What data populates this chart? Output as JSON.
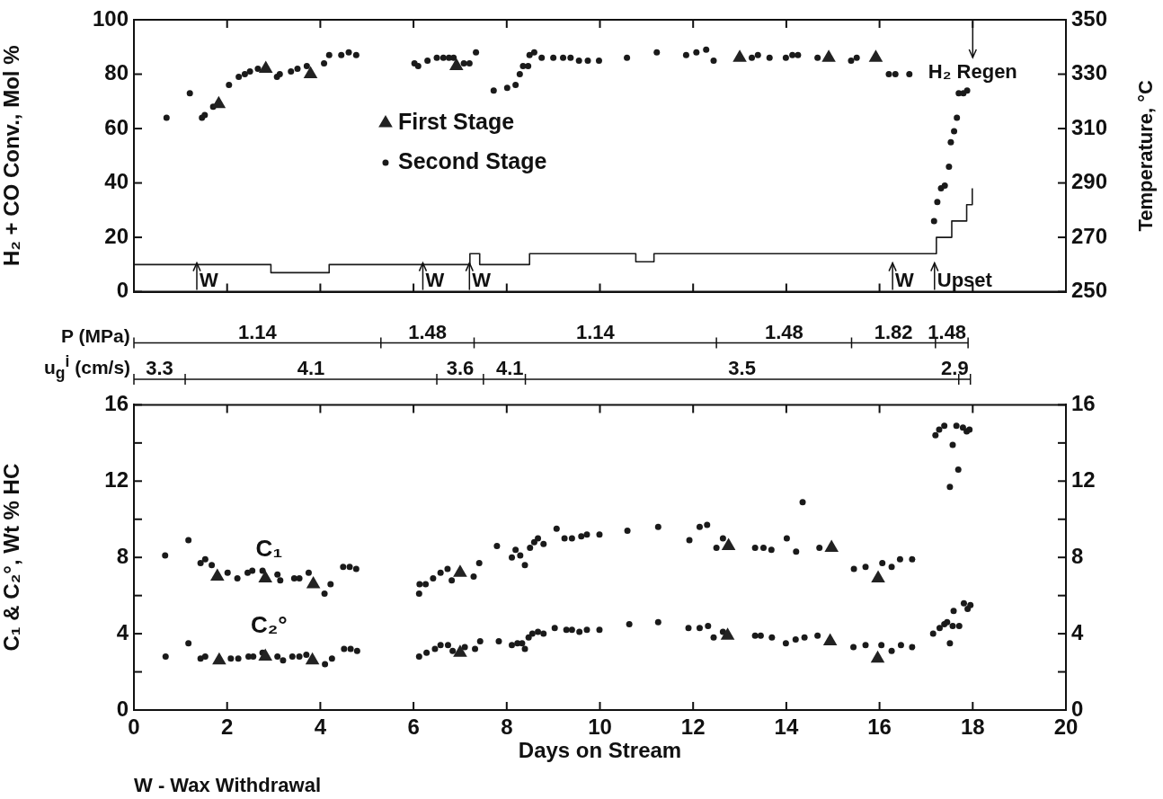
{
  "chart_data": [
    {
      "type": "scatter",
      "ylabel": "H₂ + CO Conv., Mol %",
      "y2label": "Temperature, °C",
      "xlim": [
        0,
        20
      ],
      "xticks": [
        0,
        2,
        4,
        6,
        8,
        10,
        12,
        14,
        16,
        18,
        20
      ],
      "ylim": [
        0,
        100
      ],
      "yticks": [
        0,
        20,
        40,
        60,
        80,
        100
      ],
      "y2lim": [
        250,
        350
      ],
      "y2ticks": [
        250,
        270,
        290,
        310,
        330,
        350
      ],
      "tick_labels": "y",
      "legend": "left",
      "series": [
        {
          "name": "First Stage",
          "color": "#222222",
          "marker": "triangle",
          "x": [
            1.82,
            2.83,
            3.79,
            6.92,
            13.0,
            14.91,
            15.92
          ],
          "values": [
            69,
            82,
            80,
            83,
            86,
            86,
            86
          ]
        },
        {
          "name": "Second Stage",
          "color": "#1a1a1a",
          "marker": "circle",
          "x": [
            0.7,
            1.2,
            1.46,
            1.52,
            1.7,
            2.04,
            2.25,
            2.38,
            2.49,
            2.66,
            3.07,
            3.13,
            3.37,
            3.51,
            3.71,
            4.08,
            4.19,
            4.45,
            4.61,
            4.77,
            6.02,
            6.1,
            6.3,
            6.5,
            6.64,
            6.76,
            6.86,
            7.08,
            7.2,
            7.34,
            7.72,
            8.01,
            8.19,
            8.28,
            8.35,
            8.46,
            8.49,
            8.59,
            8.75,
            9.0,
            9.21,
            9.37,
            9.55,
            9.74,
            9.98,
            10.58,
            11.22,
            11.85,
            12.07,
            12.28,
            12.44,
            13.26,
            13.39,
            13.64,
            13.99,
            14.13,
            14.25,
            14.67,
            15.39,
            15.51,
            16.2,
            16.34,
            16.64,
            17.17,
            17.24,
            17.32,
            17.4,
            17.49,
            17.53,
            17.6,
            17.66,
            17.7,
            17.8,
            17.88
          ],
          "values": [
            64,
            73,
            64,
            65,
            68,
            76,
            79,
            80,
            81,
            82,
            79,
            80,
            81,
            82,
            83,
            84,
            87,
            87,
            88,
            87,
            84,
            83,
            85,
            86,
            86,
            86,
            86,
            84,
            84,
            88,
            74,
            75,
            76,
            80,
            83,
            83,
            87,
            88,
            86,
            86,
            86,
            86,
            85,
            85,
            85,
            86,
            88,
            87,
            88,
            89,
            85,
            86,
            87,
            86,
            86,
            87,
            87,
            86,
            85,
            86,
            80,
            80,
            80,
            26,
            33,
            38,
            39,
            46,
            55,
            59,
            64,
            73,
            73,
            74
          ]
        },
        {
          "type": "step",
          "axis": "y2",
          "color": "#1a1a1a",
          "marker": "none",
          "x": [
            0,
            2.94,
            4.19,
            7.21,
            7.42,
            8.49,
            10.77,
            11.16,
            17.22,
            17.55,
            17.87,
            17.99
          ],
          "values": [
            260,
            257,
            260,
            264,
            260,
            264,
            261,
            264,
            270,
            276,
            282,
            288
          ]
        }
      ],
      "annotations": [
        "W",
        "W",
        "W",
        "W",
        "Upset",
        "H₂ Regen"
      ]
    },
    {
      "type": "other",
      "annotations": [
        "P (MPa)",
        "1.14",
        "1.48",
        "1.14",
        "1.48",
        "1.82",
        "1.48",
        "u$_{g}$$^{i}$ (cm/s)",
        "3.3",
        "4.1",
        "3.6",
        "4.1",
        "3.5",
        "2.9"
      ]
    },
    {
      "type": "scatter",
      "xlabel": "Days on Stream",
      "ylabel": "C₁ & C₂°, Wt % HC",
      "xlim": [
        0,
        20
      ],
      "xticks": [
        0,
        2,
        4,
        6,
        8,
        10,
        12,
        14,
        16,
        18,
        20
      ],
      "ylim": [
        0,
        16
      ],
      "yticks": [
        0,
        {
          "value": 2,
          "label": null
        },
        4,
        {
          "value": 6,
          "label": null
        },
        8,
        {
          "value": 10,
          "label": null
        },
        12,
        {
          "value": 14,
          "label": null
        },
        16
      ],
      "y2lim": [
        0,
        16
      ],
      "y2ticks": [
        0,
        {
          "value": 2,
          "label": null
        },
        4,
        {
          "value": 6,
          "label": null
        },
        8,
        {
          "value": 10,
          "label": null
        },
        12,
        {
          "value": 14,
          "label": null
        },
        16
      ],
      "series": [
        {
          "color": "#222222",
          "marker": "triangle",
          "x": [
            1.79,
            2.82,
            3.85,
            7.0,
            12.76,
            14.97,
            15.97
          ],
          "values": [
            7.0,
            6.9,
            6.6,
            7.2,
            8.6,
            8.5,
            6.9
          ]
        },
        {
          "color": "#1a1a1a",
          "marker": "circle",
          "x": [
            0.67,
            1.17,
            1.43,
            1.53,
            1.67,
            2.01,
            2.22,
            2.44,
            2.54,
            2.76,
            3.08,
            3.14,
            3.44,
            3.55,
            3.75,
            4.09,
            4.22,
            4.49,
            4.63,
            4.77,
            6.12,
            6.13,
            6.26,
            6.42,
            6.58,
            6.73,
            6.82,
            7.29,
            7.41,
            7.79,
            8.11,
            8.19,
            8.29,
            8.39,
            8.5,
            8.59,
            8.67,
            8.79,
            9.07,
            9.24,
            9.4,
            9.6,
            9.72,
            9.99,
            10.59,
            11.25,
            11.92,
            12.14,
            12.3,
            12.5,
            12.64,
            13.33,
            13.51,
            13.68,
            14.01,
            14.21,
            14.35,
            14.71,
            15.45,
            15.7,
            16.06,
            16.26,
            16.44,
            16.7,
            17.2,
            17.28,
            17.39,
            17.51,
            17.57,
            17.65,
            17.69,
            17.79,
            17.87,
            17.93
          ],
          "values": [
            8.1,
            8.9,
            7.7,
            7.9,
            7.6,
            7.2,
            6.9,
            7.2,
            7.3,
            7.3,
            7.1,
            6.8,
            6.9,
            6.9,
            7.2,
            6.1,
            6.6,
            7.5,
            7.5,
            7.4,
            6.1,
            6.6,
            6.6,
            6.9,
            7.2,
            7.4,
            6.8,
            7.0,
            7.7,
            8.6,
            8.0,
            8.4,
            8.1,
            7.6,
            8.5,
            8.8,
            9.0,
            8.7,
            9.5,
            9.0,
            9.0,
            9.1,
            9.2,
            9.2,
            9.4,
            9.6,
            8.9,
            9.6,
            9.7,
            8.5,
            9.0,
            8.5,
            8.5,
            8.4,
            9.0,
            8.3,
            10.9,
            8.5,
            7.4,
            7.5,
            7.7,
            7.5,
            7.9,
            7.9,
            14.4,
            14.7,
            14.9,
            11.7,
            13.9,
            14.9,
            12.6,
            14.8,
            14.6,
            14.7
          ]
        },
        {
          "color": "#222222",
          "marker": "triangle",
          "x": [
            1.83,
            2.82,
            3.83,
            7.0,
            12.74,
            14.94,
            15.96
          ],
          "values": [
            2.6,
            2.8,
            2.6,
            3.0,
            3.9,
            3.6,
            2.7
          ]
        },
        {
          "color": "#1a1a1a",
          "marker": "circle",
          "x": [
            0.68,
            1.17,
            1.43,
            1.53,
            2.08,
            2.24,
            2.46,
            2.56,
            2.76,
            3.08,
            3.2,
            3.4,
            3.55,
            3.7,
            4.1,
            4.25,
            4.51,
            4.65,
            4.79,
            6.12,
            6.28,
            6.46,
            6.58,
            6.74,
            6.84,
            7.1,
            7.32,
            7.43,
            7.83,
            8.11,
            8.23,
            8.33,
            8.39,
            8.47,
            8.55,
            8.67,
            8.79,
            9.03,
            9.28,
            9.4,
            9.56,
            9.72,
            9.99,
            10.63,
            11.25,
            11.9,
            12.14,
            12.32,
            12.44,
            12.64,
            13.33,
            13.45,
            13.69,
            13.99,
            14.2,
            14.39,
            14.67,
            15.44,
            15.7,
            16.04,
            16.26,
            16.46,
            16.7,
            17.15,
            17.29,
            17.39,
            17.45,
            17.51,
            17.57,
            17.59,
            17.71,
            17.81,
            17.89,
            17.95
          ],
          "values": [
            2.8,
            3.5,
            2.7,
            2.8,
            2.7,
            2.7,
            2.8,
            2.8,
            3.0,
            2.8,
            2.6,
            2.8,
            2.8,
            2.9,
            2.4,
            2.7,
            3.2,
            3.2,
            3.1,
            2.8,
            3.0,
            3.2,
            3.4,
            3.4,
            3.1,
            3.3,
            3.2,
            3.6,
            3.6,
            3.4,
            3.5,
            3.5,
            3.2,
            3.8,
            4.0,
            4.1,
            4.0,
            4.3,
            4.2,
            4.2,
            4.1,
            4.2,
            4.2,
            4.5,
            4.6,
            4.3,
            4.3,
            4.4,
            3.8,
            4.1,
            3.9,
            3.9,
            3.8,
            3.5,
            3.7,
            3.8,
            3.9,
            3.3,
            3.4,
            3.4,
            3.1,
            3.4,
            3.3,
            4.0,
            4.3,
            4.5,
            4.6,
            3.5,
            4.4,
            5.2,
            4.4,
            5.6,
            5.3,
            5.5
          ]
        }
      ],
      "annotations": [
        "C₁",
        "C₂°",
        "W - Wax Withdrawal"
      ]
    }
  ]
}
